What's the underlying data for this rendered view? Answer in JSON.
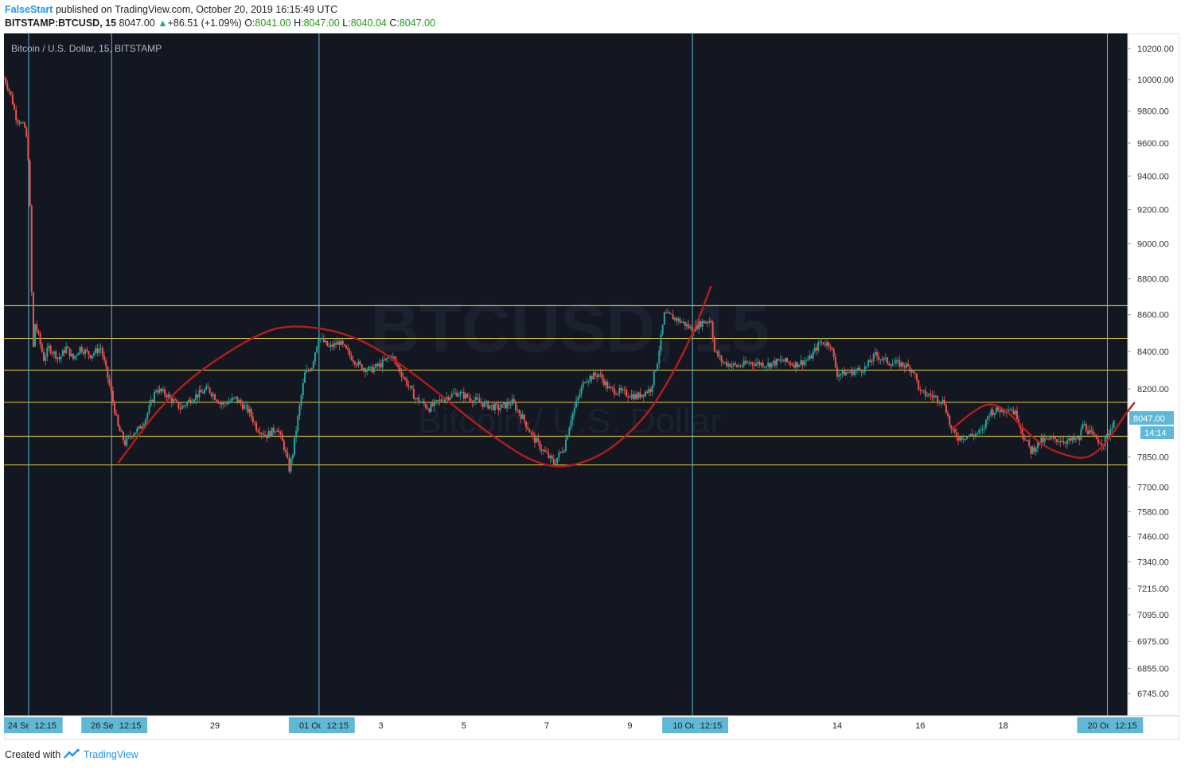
{
  "header": {
    "author": "FalseStart",
    "published_text": "published on TradingView.com, October 20, 2019 16:15:49 UTC",
    "symbol": "BITSTAMP:BTCUSD, 15",
    "last": "8047.00",
    "change": "+86.51 (+1.09%)",
    "open_label": "O:",
    "open": "8041.00",
    "high_label": "H:",
    "high": "8047.00",
    "low_label": "L:",
    "low": "8040.04",
    "close_label": "C:",
    "close": "8047.00"
  },
  "footer": {
    "created_with": "Created with",
    "brand": "TradingView"
  },
  "colors": {
    "background": "#131722",
    "up": "#26a69a",
    "down": "#ef5350",
    "support_line": "#ffeb3b",
    "vertical_line": "#5fb8d6",
    "curve": "#b71c1c",
    "axis_tag": "#5fb8d6"
  },
  "chart_data": {
    "type": "candlestick",
    "title": "Bitcoin / U.S. Dollar, 15, BITSTAMP",
    "watermark": "BTCUSD, 15",
    "watermark_sub": "Bitcoin / U.S. Dollar",
    "price_label": "8047.00",
    "countdown_label": "14:14",
    "y_scale": "log",
    "ylim": [
      6650,
      10300
    ],
    "y_ticks": [
      "10200.00",
      "10000.00",
      "9800.00",
      "9600.00",
      "9400.00",
      "9200.00",
      "9000.00",
      "8800.00",
      "8600.00",
      "8400.00",
      "8200.00",
      "8047.00",
      "7850.00",
      "7700.00",
      "7580.00",
      "7460.00",
      "7340.00",
      "7215.00",
      "7095.00",
      "6975.00",
      "6855.00",
      "6745.00"
    ],
    "y_tick_values": [
      10200,
      10000,
      9800,
      9600,
      9400,
      9200,
      9000,
      8800,
      8600,
      8400,
      8200,
      8047,
      7850,
      7700,
      7580,
      7460,
      7340,
      7215,
      7095,
      6975,
      6855,
      6745
    ],
    "xlim": [
      "2019-09-23 22:00",
      "2019-10-21 00:00"
    ],
    "x_ticks": [
      {
        "label": "24 Sep '19",
        "time": "2019-09-24 12:15",
        "tag": true
      },
      {
        "label": "12:15",
        "time": "2019-09-24 22:00",
        "tag": true
      },
      {
        "label": "26 Sep '19",
        "time": "2019-09-26 12:15",
        "tag": true
      },
      {
        "label": "12:15",
        "time": "2019-09-26 23:00",
        "tag": true
      },
      {
        "label": "29",
        "time": "2019-09-29 00:00",
        "tag": false
      },
      {
        "label": "01 Oct '19",
        "time": "2019-10-01 12:15",
        "tag": true
      },
      {
        "label": "12:15",
        "time": "2019-10-01 23:00",
        "tag": true
      },
      {
        "label": "3",
        "time": "2019-10-03 00:00",
        "tag": false
      },
      {
        "label": "5",
        "time": "2019-10-05 00:00",
        "tag": false
      },
      {
        "label": "7",
        "time": "2019-10-07 00:00",
        "tag": false
      },
      {
        "label": "9",
        "time": "2019-10-09 00:00",
        "tag": false
      },
      {
        "label": "10 Oct '19",
        "time": "2019-10-10 12:15",
        "tag": true
      },
      {
        "label": "12:15",
        "time": "2019-10-10 23:00",
        "tag": true
      },
      {
        "label": "14",
        "time": "2019-10-14 00:00",
        "tag": false
      },
      {
        "label": "16",
        "time": "2019-10-16 00:00",
        "tag": false
      },
      {
        "label": "18",
        "time": "2019-10-18 00:00",
        "tag": false
      },
      {
        "label": "20 Oct '19",
        "time": "2019-10-20 12:15",
        "tag": true
      },
      {
        "label": "12:15",
        "time": "2019-10-20 23:00",
        "tag": true
      }
    ],
    "vertical_lines": [
      "2019-09-24 12:15",
      "2019-09-26 12:15",
      "2019-10-01 12:15",
      "2019-10-10 12:15",
      "2019-10-20 12:15"
    ],
    "horizontal_levels": [
      8650,
      8470,
      8300,
      8130,
      7955,
      7810
    ],
    "price_path": [
      [
        "2019-09-23 22:00",
        10010
      ],
      [
        "2019-09-24 02:00",
        9900
      ],
      [
        "2019-09-24 05:00",
        9760
      ],
      [
        "2019-09-24 08:00",
        9720
      ],
      [
        "2019-09-24 10:30",
        9690
      ],
      [
        "2019-09-24 12:30",
        9450
      ],
      [
        "2019-09-24 14:00",
        8720
      ],
      [
        "2019-09-24 15:00",
        8420
      ],
      [
        "2019-09-24 16:00",
        8550
      ],
      [
        "2019-09-24 18:00",
        8480
      ],
      [
        "2019-09-24 21:00",
        8360
      ],
      [
        "2019-09-25 00:00",
        8420
      ],
      [
        "2019-09-25 06:00",
        8360
      ],
      [
        "2019-09-25 10:00",
        8420
      ],
      [
        "2019-09-25 14:00",
        8360
      ],
      [
        "2019-09-25 18:00",
        8420
      ],
      [
        "2019-09-26 00:00",
        8380
      ],
      [
        "2019-09-26 06:00",
        8420
      ],
      [
        "2019-09-26 12:00",
        8180
      ],
      [
        "2019-09-26 16:00",
        8000
      ],
      [
        "2019-09-26 20:00",
        7920
      ],
      [
        "2019-09-27 00:00",
        7970
      ],
      [
        "2019-09-27 04:00",
        7990
      ],
      [
        "2019-09-27 08:00",
        8050
      ],
      [
        "2019-09-27 14:00",
        8200
      ],
      [
        "2019-09-27 20:00",
        8170
      ],
      [
        "2019-09-28 04:00",
        8100
      ],
      [
        "2019-09-28 12:00",
        8160
      ],
      [
        "2019-09-28 20:00",
        8200
      ],
      [
        "2019-09-29 04:00",
        8120
      ],
      [
        "2019-09-29 12:00",
        8150
      ],
      [
        "2019-09-29 20:00",
        8080
      ],
      [
        "2019-09-30 00:00",
        8000
      ],
      [
        "2019-09-30 06:00",
        7960
      ],
      [
        "2019-09-30 12:00",
        8000
      ],
      [
        "2019-09-30 16:00",
        7900
      ],
      [
        "2019-09-30 19:00",
        7790
      ],
      [
        "2019-09-30 21:00",
        7870
      ],
      [
        "2019-10-01 00:00",
        8050
      ],
      [
        "2019-10-01 04:00",
        8280
      ],
      [
        "2019-10-01 08:00",
        8320
      ],
      [
        "2019-10-01 12:00",
        8480
      ],
      [
        "2019-10-01 18:00",
        8420
      ],
      [
        "2019-10-02 00:00",
        8450
      ],
      [
        "2019-10-02 06:00",
        8380
      ],
      [
        "2019-10-02 12:00",
        8320
      ],
      [
        "2019-10-02 18:00",
        8300
      ],
      [
        "2019-10-03 00:00",
        8330
      ],
      [
        "2019-10-03 06:00",
        8380
      ],
      [
        "2019-10-03 12:00",
        8280
      ],
      [
        "2019-10-03 20:00",
        8150
      ],
      [
        "2019-10-04 04:00",
        8100
      ],
      [
        "2019-10-04 12:00",
        8150
      ],
      [
        "2019-10-04 20:00",
        8180
      ],
      [
        "2019-10-05 04:00",
        8150
      ],
      [
        "2019-10-05 12:00",
        8120
      ],
      [
        "2019-10-05 20:00",
        8100
      ],
      [
        "2019-10-06 04:00",
        8130
      ],
      [
        "2019-10-06 10:00",
        8050
      ],
      [
        "2019-10-06 16:00",
        7950
      ],
      [
        "2019-10-06 22:00",
        7880
      ],
      [
        "2019-10-07 04:00",
        7820
      ],
      [
        "2019-10-07 10:00",
        7900
      ],
      [
        "2019-10-07 14:00",
        8050
      ],
      [
        "2019-10-07 18:00",
        8150
      ],
      [
        "2019-10-07 22:00",
        8250
      ],
      [
        "2019-10-08 06:00",
        8280
      ],
      [
        "2019-10-08 12:00",
        8200
      ],
      [
        "2019-10-08 20:00",
        8180
      ],
      [
        "2019-10-09 04:00",
        8160
      ],
      [
        "2019-10-09 12:00",
        8200
      ],
      [
        "2019-10-09 16:00",
        8350
      ],
      [
        "2019-10-09 20:00",
        8600
      ],
      [
        "2019-10-10 00:00",
        8590
      ],
      [
        "2019-10-10 06:00",
        8560
      ],
      [
        "2019-10-10 12:00",
        8520
      ],
      [
        "2019-10-10 18:00",
        8560
      ],
      [
        "2019-10-10 23:00",
        8570
      ],
      [
        "2019-10-11 01:00",
        8400
      ],
      [
        "2019-10-11 06:00",
        8340
      ],
      [
        "2019-10-11 14:00",
        8320
      ],
      [
        "2019-10-11 22:00",
        8340
      ],
      [
        "2019-10-12 08:00",
        8330
      ],
      [
        "2019-10-12 16:00",
        8350
      ],
      [
        "2019-10-13 00:00",
        8330
      ],
      [
        "2019-10-13 08:00",
        8360
      ],
      [
        "2019-10-13 14:00",
        8450
      ],
      [
        "2019-10-13 20:00",
        8440
      ],
      [
        "2019-10-14 00:00",
        8280
      ],
      [
        "2019-10-14 08:00",
        8290
      ],
      [
        "2019-10-14 16:00",
        8310
      ],
      [
        "2019-10-14 22:00",
        8380
      ],
      [
        "2019-10-15 06:00",
        8340
      ],
      [
        "2019-10-15 14:00",
        8330
      ],
      [
        "2019-10-15 20:00",
        8300
      ],
      [
        "2019-10-16 00:00",
        8180
      ],
      [
        "2019-10-16 08:00",
        8160
      ],
      [
        "2019-10-16 14:00",
        8130
      ],
      [
        "2019-10-16 18:00",
        7980
      ],
      [
        "2019-10-16 22:00",
        7950
      ],
      [
        "2019-10-17 06:00",
        7960
      ],
      [
        "2019-10-17 12:00",
        7980
      ],
      [
        "2019-10-17 16:00",
        8080
      ],
      [
        "2019-10-17 22:00",
        8090
      ],
      [
        "2019-10-18 04:00",
        8100
      ],
      [
        "2019-10-18 08:00",
        8060
      ],
      [
        "2019-10-18 12:00",
        7950
      ],
      [
        "2019-10-18 16:00",
        7880
      ],
      [
        "2019-10-18 22:00",
        7930
      ],
      [
        "2019-10-19 06:00",
        7940
      ],
      [
        "2019-10-19 14:00",
        7930
      ],
      [
        "2019-10-19 20:00",
        7940
      ],
      [
        "2019-10-19 22:00",
        8020
      ],
      [
        "2019-10-20 04:00",
        7950
      ],
      [
        "2019-10-20 10:00",
        7920
      ],
      [
        "2019-10-20 14:00",
        7990
      ],
      [
        "2019-10-20 16:15",
        8047
      ]
    ],
    "arcs": [
      {
        "points": [
          [
            "2019-09-26 16:00",
            7820
          ],
          [
            "2019-10-01 00:00",
            8550
          ],
          [
            "2019-10-10 17:00",
            8750
          ]
        ],
        "curve": [
          [
            "2019-09-26 16:00",
            7820
          ],
          [
            "2019-09-28 00:00",
            8200
          ],
          [
            "2019-09-30 00:00",
            8500
          ],
          [
            "2019-10-01 00:00",
            8550
          ],
          [
            "2019-10-02 12:00",
            8480
          ],
          [
            "2019-10-04 00:00",
            8250
          ],
          [
            "2019-10-05 12:00",
            7980
          ],
          [
            "2019-10-07 00:00",
            7780
          ],
          [
            "2019-10-08 06:00",
            7840
          ],
          [
            "2019-10-09 06:00",
            8020
          ],
          [
            "2019-10-09 20:00",
            8200
          ],
          [
            "2019-10-10 12:00",
            8480
          ],
          [
            "2019-10-10 23:00",
            8760
          ]
        ]
      },
      {
        "curve": [
          [
            "2019-10-16 18:00",
            7990
          ],
          [
            "2019-10-17 06:00",
            8080
          ],
          [
            "2019-10-17 16:00",
            8130
          ],
          [
            "2019-10-18 02:00",
            8090
          ],
          [
            "2019-10-18 12:00",
            7990
          ],
          [
            "2019-10-19 00:00",
            7900
          ],
          [
            "2019-10-19 12:00",
            7860
          ],
          [
            "2019-10-19 22:00",
            7840
          ],
          [
            "2019-10-20 06:00",
            7870
          ],
          [
            "2019-10-20 14:00",
            7950
          ],
          [
            "2019-10-20 22:00",
            8060
          ],
          [
            "2019-10-21 04:00",
            8130
          ]
        ]
      }
    ]
  }
}
